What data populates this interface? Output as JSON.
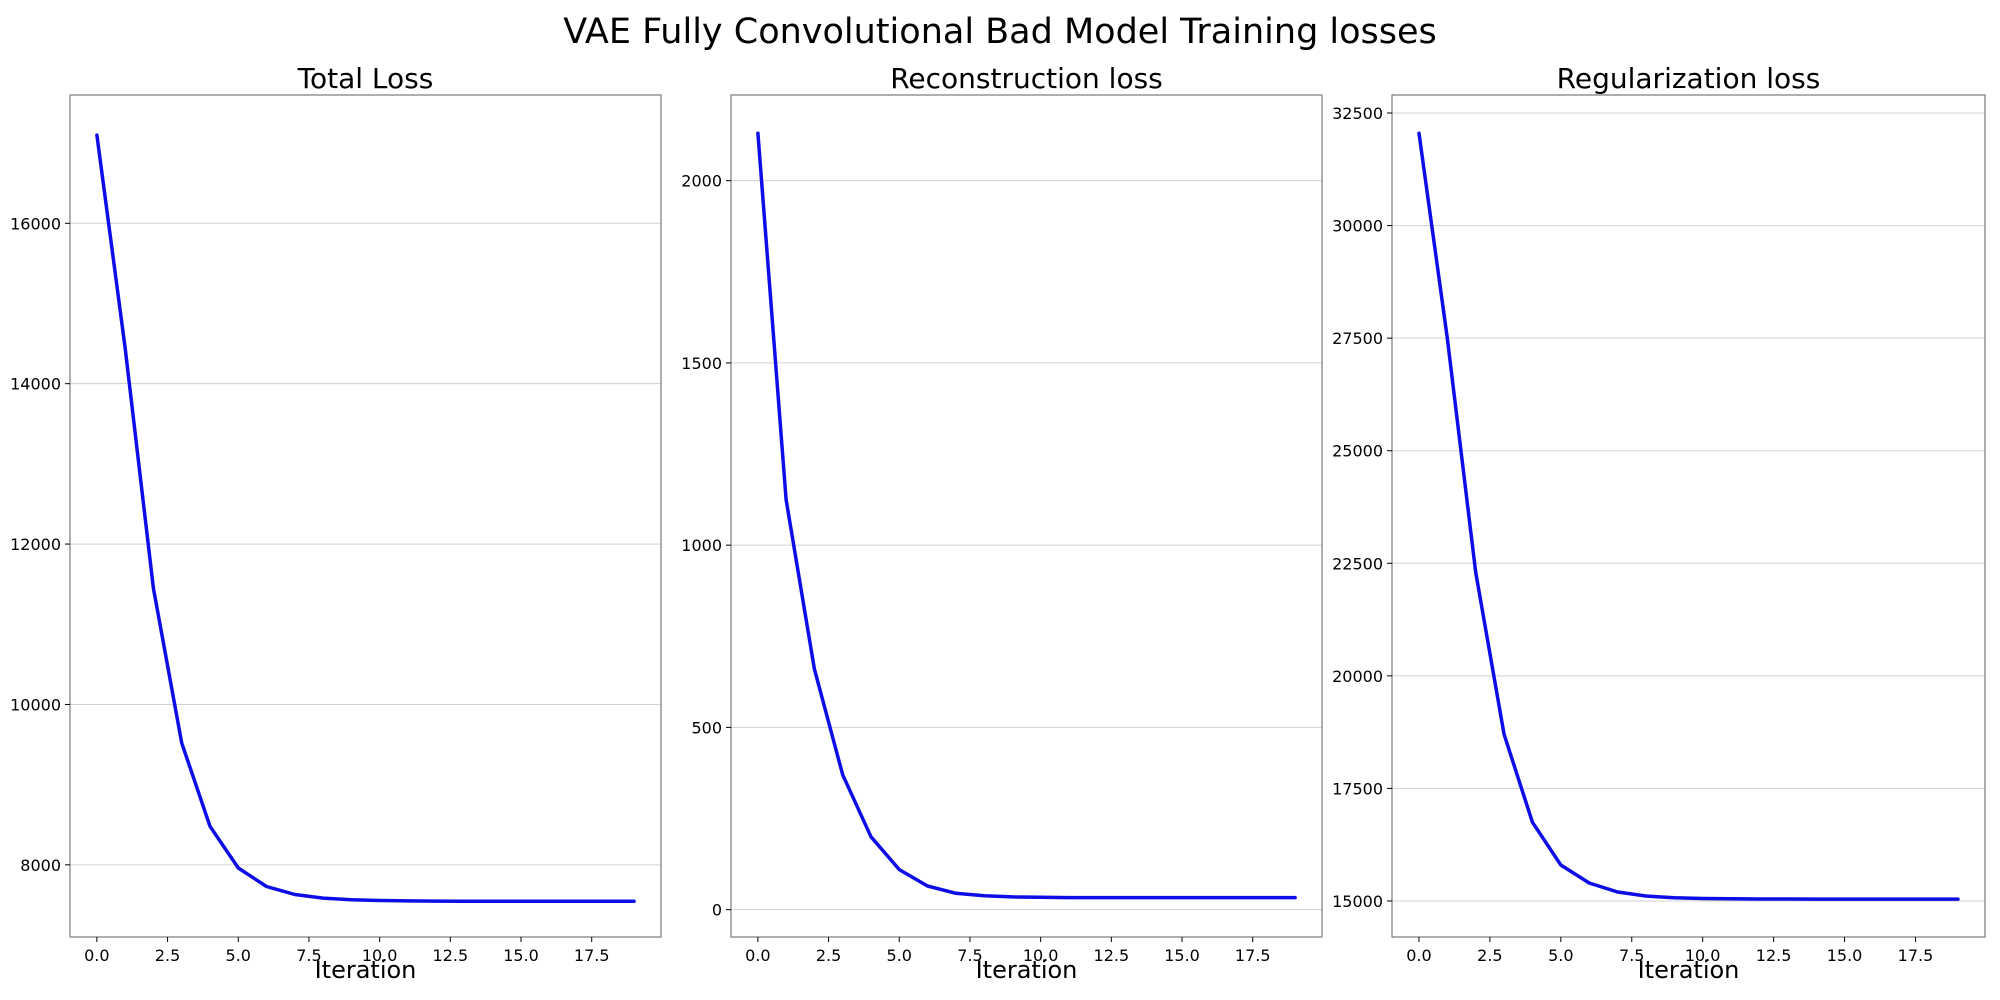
{
  "suptitle": "VAE Fully Convolutional Bad Model Training losses",
  "colors": {
    "line": "#0d0de8",
    "grid": "#d0d0d0",
    "frame": "#7a7a7a"
  },
  "chart_data": [
    {
      "type": "line",
      "title": "Total Loss",
      "xlabel": "Iteration",
      "ylabel": "",
      "xlim": [
        -0.95,
        19.95
      ],
      "ylim": [
        7100,
        17600
      ],
      "xticks": [
        0.0,
        2.5,
        5.0,
        7.5,
        10.0,
        12.5,
        15.0,
        17.5
      ],
      "xtick_labels": [
        "0.0",
        "2.5",
        "5.0",
        "7.5",
        "10.0",
        "12.5",
        "15.0",
        "17.5"
      ],
      "yticks": [
        8000,
        10000,
        12000,
        14000,
        16000
      ],
      "ytick_labels": [
        "8000",
        "10000",
        "12000",
        "14000",
        "16000"
      ],
      "grid": "y",
      "series": [
        {
          "x": [
            0,
            1,
            2,
            3,
            4,
            5,
            6,
            7,
            8,
            9,
            10,
            11,
            12,
            13,
            14,
            15,
            16,
            17,
            18,
            19
          ],
          "y": [
            17100,
            14450,
            11450,
            9520,
            8480,
            7960,
            7730,
            7630,
            7585,
            7565,
            7555,
            7550,
            7548,
            7546,
            7545,
            7545,
            7545,
            7545,
            7545,
            7545
          ]
        }
      ]
    },
    {
      "type": "line",
      "title": "Reconstruction loss",
      "xlabel": "Iteration",
      "ylabel": "",
      "xlim": [
        -0.95,
        19.95
      ],
      "ylim": [
        -75,
        2235
      ],
      "xticks": [
        0.0,
        2.5,
        5.0,
        7.5,
        10.0,
        12.5,
        15.0,
        17.5
      ],
      "xtick_labels": [
        "0.0",
        "2.5",
        "5.0",
        "7.5",
        "10.0",
        "12.5",
        "15.0",
        "17.5"
      ],
      "yticks": [
        0,
        500,
        1000,
        1500,
        2000
      ],
      "ytick_labels": [
        "0",
        "500",
        "1000",
        "1500",
        "2000"
      ],
      "grid": "y",
      "series": [
        {
          "x": [
            0,
            1,
            2,
            3,
            4,
            5,
            6,
            7,
            8,
            9,
            10,
            11,
            12,
            13,
            14,
            15,
            16,
            17,
            18,
            19
          ],
          "y": [
            2130,
            1125,
            660,
            370,
            200,
            110,
            65,
            45,
            38,
            35,
            34,
            33,
            33,
            33,
            33,
            33,
            33,
            33,
            33,
            33
          ]
        }
      ]
    },
    {
      "type": "line",
      "title": "Regularization loss",
      "xlabel": "Iteration",
      "ylabel": "",
      "xlim": [
        -0.95,
        19.95
      ],
      "ylim": [
        14200,
        32900
      ],
      "xticks": [
        0.0,
        2.5,
        5.0,
        7.5,
        10.0,
        12.5,
        15.0,
        17.5
      ],
      "xtick_labels": [
        "0.0",
        "2.5",
        "5.0",
        "7.5",
        "10.0",
        "12.5",
        "15.0",
        "17.5"
      ],
      "yticks": [
        15000,
        17500,
        20000,
        22500,
        25000,
        27500,
        30000,
        32500
      ],
      "ytick_labels": [
        "15000",
        "17500",
        "20000",
        "22500",
        "25000",
        "27500",
        "30000",
        "32500"
      ],
      "grid": "y",
      "series": [
        {
          "x": [
            0,
            1,
            2,
            3,
            4,
            5,
            6,
            7,
            8,
            9,
            10,
            11,
            12,
            13,
            14,
            15,
            16,
            17,
            18,
            19
          ],
          "y": [
            32050,
            27500,
            22300,
            18700,
            16750,
            15800,
            15400,
            15200,
            15110,
            15070,
            15055,
            15048,
            15045,
            15043,
            15042,
            15042,
            15042,
            15042,
            15042,
            15042
          ]
        }
      ]
    }
  ]
}
